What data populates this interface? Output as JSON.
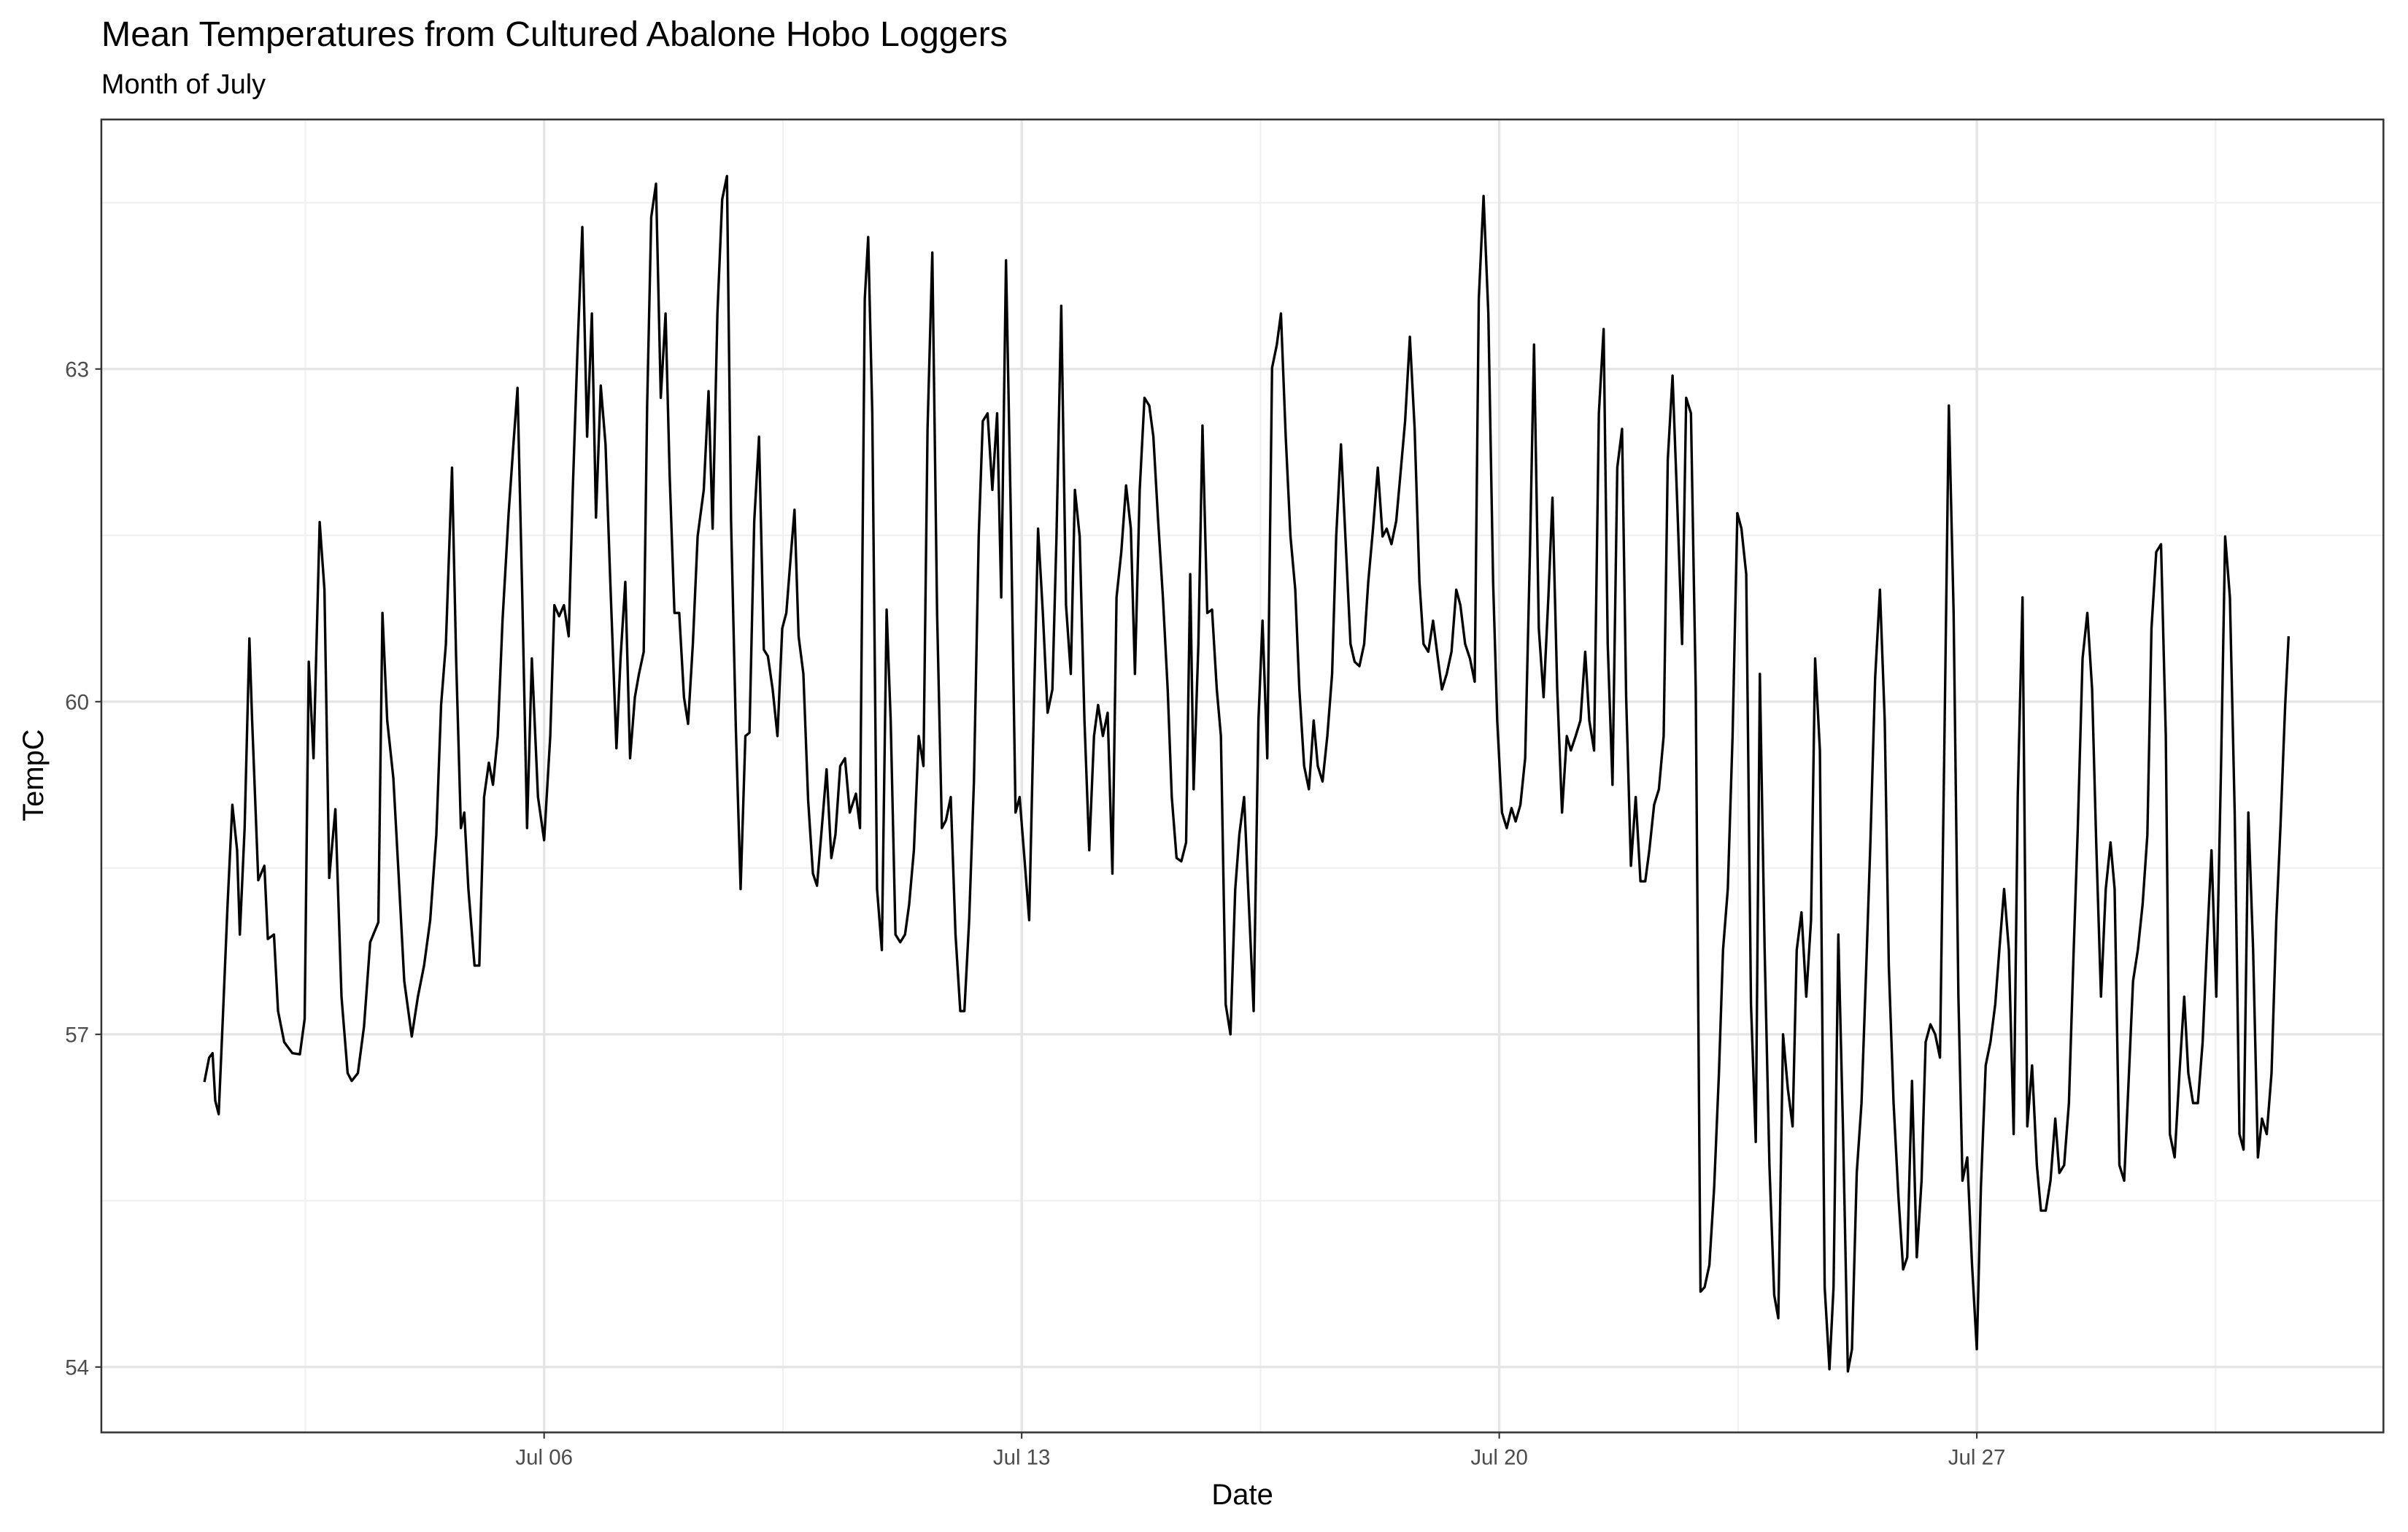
{
  "chart_data": {
    "type": "line",
    "title": "Mean Temperatures from Cultured Abalone Hobo Loggers",
    "subtitle": "Month of July",
    "x_label": "Date",
    "y_label": "TempC",
    "color": "#000000",
    "grid": true,
    "xlim": [
      -0.49,
      32.96
    ],
    "ylim": [
      53.41,
      65.25
    ],
    "xticks": [
      {
        "value": 6,
        "label": "Jul 06"
      },
      {
        "value": 13,
        "label": "Jul 13"
      },
      {
        "value": 20,
        "label": "Jul 20"
      },
      {
        "value": 27,
        "label": "Jul 27"
      }
    ],
    "x_minor_ticks": [
      2.5,
      9.5,
      16.5,
      23.5,
      30.5
    ],
    "yticks": [
      54,
      57,
      60,
      63
    ],
    "y_minor_ticks": [
      55.5,
      58.5,
      61.5,
      64.5
    ],
    "x": [
      1.02,
      1.09,
      1.14,
      1.18,
      1.23,
      1.29,
      1.36,
      1.43,
      1.5,
      1.54,
      1.61,
      1.68,
      1.72,
      1.81,
      1.9,
      1.95,
      2.04,
      2.1,
      2.19,
      2.31,
      2.42,
      2.49,
      2.55,
      2.62,
      2.71,
      2.78,
      2.85,
      2.94,
      3.03,
      3.12,
      3.18,
      3.27,
      3.36,
      3.45,
      3.57,
      3.63,
      3.7,
      3.79,
      3.86,
      3.95,
      4.06,
      4.15,
      4.24,
      4.33,
      4.42,
      4.49,
      4.56,
      4.65,
      4.71,
      4.78,
      4.83,
      4.89,
      4.98,
      5.05,
      5.12,
      5.19,
      5.25,
      5.32,
      5.39,
      5.48,
      5.55,
      5.61,
      5.68,
      5.75,
      5.82,
      5.91,
      6.0,
      6.09,
      6.15,
      6.22,
      6.29,
      6.36,
      6.42,
      6.49,
      6.56,
      6.63,
      6.7,
      6.76,
      6.83,
      6.9,
      6.97,
      7.06,
      7.12,
      7.19,
      7.26,
      7.33,
      7.39,
      7.46,
      7.51,
      7.57,
      7.64,
      7.71,
      7.78,
      7.84,
      7.91,
      7.98,
      8.05,
      8.11,
      8.18,
      8.25,
      8.34,
      8.41,
      8.47,
      8.54,
      8.61,
      8.68,
      8.74,
      8.81,
      8.88,
      8.95,
      9.01,
      9.08,
      9.15,
      9.22,
      9.28,
      9.35,
      9.42,
      9.49,
      9.55,
      9.62,
      9.67,
      9.73,
      9.8,
      9.87,
      9.94,
      10.0,
      10.07,
      10.14,
      10.21,
      10.27,
      10.34,
      10.41,
      10.48,
      10.57,
      10.63,
      10.7,
      10.75,
      10.81,
      10.88,
      10.95,
      11.02,
      11.08,
      11.15,
      11.22,
      11.29,
      11.35,
      11.42,
      11.49,
      11.56,
      11.62,
      11.69,
      11.76,
      11.83,
      11.89,
      11.96,
      12.03,
      12.1,
      12.16,
      12.23,
      12.3,
      12.37,
      12.43,
      12.5,
      12.57,
      12.64,
      12.7,
      12.77,
      12.84,
      12.91,
      12.97,
      13.04,
      13.11,
      13.18,
      13.24,
      13.31,
      13.38,
      13.45,
      13.51,
      13.58,
      13.65,
      13.72,
      13.78,
      13.85,
      13.92,
      13.99,
      14.06,
      14.12,
      14.19,
      14.26,
      14.33,
      14.39,
      14.46,
      14.53,
      14.6,
      14.66,
      14.73,
      14.8,
      14.87,
      14.93,
      15.0,
      15.07,
      15.14,
      15.2,
      15.27,
      15.34,
      15.41,
      15.47,
      15.52,
      15.59,
      15.65,
      15.72,
      15.79,
      15.86,
      15.92,
      15.99,
      16.06,
      16.13,
      16.19,
      16.26,
      16.33,
      16.4,
      16.47,
      16.53,
      16.6,
      16.67,
      16.74,
      16.8,
      16.87,
      16.94,
      17.01,
      17.07,
      17.14,
      17.21,
      17.28,
      17.34,
      17.41,
      17.48,
      17.55,
      17.61,
      17.68,
      17.75,
      17.82,
      17.88,
      17.95,
      18.02,
      18.08,
      18.15,
      18.22,
      18.29,
      18.35,
      18.42,
      18.49,
      18.56,
      18.62,
      18.69,
      18.76,
      18.83,
      18.89,
      18.96,
      19.03,
      19.1,
      19.16,
      19.23,
      19.3,
      19.37,
      19.43,
      19.5,
      19.57,
      19.64,
      19.7,
      19.77,
      19.84,
      19.91,
      19.97,
      20.04,
      20.11,
      20.18,
      20.24,
      20.31,
      20.38,
      20.45,
      20.51,
      20.58,
      20.65,
      20.72,
      20.78,
      20.85,
      20.92,
      20.99,
      21.05,
      21.12,
      21.19,
      21.26,
      21.32,
      21.39,
      21.46,
      21.53,
      21.59,
      21.66,
      21.73,
      21.8,
      21.86,
      21.93,
      22.0,
      22.07,
      22.14,
      22.2,
      22.27,
      22.34,
      22.41,
      22.47,
      22.54,
      22.61,
      22.68,
      22.74,
      22.81,
      22.88,
      22.95,
      23.01,
      23.08,
      23.15,
      23.22,
      23.28,
      23.35,
      23.42,
      23.49,
      23.55,
      23.62,
      23.69,
      23.76,
      23.82,
      23.89,
      23.96,
      24.03,
      24.09,
      24.16,
      24.23,
      24.3,
      24.36,
      24.43,
      24.5,
      24.57,
      24.63,
      24.7,
      24.77,
      24.84,
      24.9,
      24.97,
      25.04,
      25.11,
      25.17,
      25.24,
      25.31,
      25.38,
      25.44,
      25.51,
      25.58,
      25.65,
      25.71,
      25.78,
      25.85,
      25.92,
      25.98,
      26.05,
      26.12,
      26.19,
      26.25,
      26.32,
      26.39,
      26.46,
      26.52,
      26.59,
      26.66,
      26.73,
      26.79,
      26.86,
      26.93,
      27.0,
      27.06,
      27.13,
      27.2,
      27.27,
      27.33,
      27.4,
      27.47,
      27.54,
      27.6,
      27.67,
      27.74,
      27.81,
      27.88,
      27.94,
      28.01,
      28.08,
      28.15,
      28.21,
      28.28,
      28.35,
      28.42,
      28.48,
      28.55,
      28.62,
      28.69,
      28.75,
      28.82,
      28.89,
      28.96,
      29.02,
      29.09,
      29.16,
      29.23,
      29.29,
      29.36,
      29.43,
      29.5,
      29.56,
      29.63,
      29.7,
      29.77,
      29.83,
      29.9,
      29.97,
      30.04,
      30.1,
      30.17,
      30.24,
      30.31,
      30.37,
      30.44,
      30.51,
      30.58,
      30.64,
      30.71,
      30.78,
      30.85,
      30.91,
      30.98,
      31.05,
      31.12,
      31.18,
      31.25,
      31.32,
      31.39,
      31.45,
      31.52,
      31.57
    ],
    "values": [
      56.57,
      56.79,
      56.83,
      56.4,
      56.28,
      57.14,
      58.17,
      59.07,
      58.66,
      57.9,
      58.86,
      60.57,
      59.83,
      58.39,
      58.52,
      57.86,
      57.9,
      57.21,
      56.93,
      56.83,
      56.82,
      57.14,
      60.36,
      59.49,
      61.62,
      61.01,
      58.41,
      59.03,
      57.34,
      56.65,
      56.58,
      56.65,
      57.07,
      57.83,
      58.01,
      60.8,
      59.83,
      59.31,
      58.52,
      57.48,
      56.98,
      57.34,
      57.62,
      58.03,
      58.8,
      59.97,
      60.52,
      62.11,
      60.39,
      58.86,
      59.0,
      58.31,
      57.62,
      57.62,
      59.14,
      59.45,
      59.25,
      59.69,
      60.73,
      61.7,
      62.32,
      62.83,
      60.94,
      58.86,
      60.39,
      59.14,
      58.75,
      59.69,
      60.87,
      60.77,
      60.87,
      60.59,
      61.91,
      63.19,
      64.28,
      62.39,
      63.5,
      61.66,
      62.85,
      62.32,
      61.08,
      59.58,
      60.39,
      61.08,
      59.49,
      60.04,
      60.25,
      60.45,
      62.67,
      64.37,
      64.67,
      62.74,
      63.5,
      62.04,
      60.8,
      60.8,
      60.04,
      59.8,
      60.52,
      61.49,
      61.91,
      62.8,
      61.56,
      63.5,
      64.53,
      64.74,
      61.63,
      59.76,
      58.31,
      59.69,
      59.72,
      61.63,
      62.39,
      60.47,
      60.41,
      60.11,
      59.69,
      60.66,
      60.8,
      61.35,
      61.73,
      60.59,
      60.25,
      59.11,
      58.45,
      58.34,
      58.86,
      59.39,
      58.59,
      58.8,
      59.42,
      59.49,
      59.0,
      59.17,
      58.86,
      63.63,
      64.19,
      62.6,
      58.31,
      57.76,
      60.83,
      59.83,
      57.9,
      57.83,
      57.9,
      58.17,
      58.66,
      59.69,
      59.42,
      62.46,
      64.05,
      60.8,
      58.86,
      58.93,
      59.14,
      57.9,
      57.21,
      57.21,
      58.03,
      59.28,
      61.49,
      62.53,
      62.6,
      61.91,
      62.6,
      60.94,
      63.98,
      61.7,
      59.0,
      59.14,
      58.59,
      58.03,
      59.97,
      61.56,
      60.8,
      59.9,
      60.11,
      61.49,
      63.57,
      60.87,
      60.25,
      61.91,
      61.49,
      59.83,
      58.66,
      59.69,
      59.97,
      59.69,
      59.9,
      58.45,
      60.94,
      61.35,
      61.95,
      61.56,
      60.25,
      61.91,
      62.74,
      62.67,
      62.39,
      61.63,
      60.94,
      60.11,
      59.14,
      58.59,
      58.56,
      58.73,
      61.15,
      59.21,
      60.52,
      62.49,
      60.8,
      60.83,
      60.11,
      59.69,
      57.27,
      57.0,
      58.31,
      58.8,
      59.14,
      58.17,
      57.21,
      59.83,
      60.73,
      59.49,
      63.01,
      63.22,
      63.5,
      62.39,
      61.49,
      61.01,
      60.11,
      59.42,
      59.21,
      59.83,
      59.42,
      59.28,
      59.69,
      60.25,
      61.49,
      62.32,
      61.42,
      60.52,
      60.36,
      60.32,
      60.52,
      61.08,
      61.56,
      62.11,
      61.49,
      61.56,
      61.42,
      61.63,
      62.11,
      62.53,
      63.29,
      62.46,
      61.08,
      60.52,
      60.45,
      60.73,
      60.39,
      60.11,
      60.25,
      60.45,
      61.01,
      60.87,
      60.52,
      60.39,
      60.18,
      63.63,
      64.56,
      63.5,
      61.08,
      59.83,
      59.0,
      58.86,
      59.04,
      58.92,
      59.07,
      59.49,
      61.35,
      63.22,
      60.66,
      60.04,
      60.94,
      61.84,
      60.11,
      59.0,
      59.69,
      59.56,
      59.69,
      59.83,
      60.45,
      59.83,
      59.56,
      62.6,
      63.36,
      60.52,
      59.25,
      62.11,
      62.46,
      60.04,
      58.52,
      59.14,
      58.38,
      58.38,
      58.66,
      59.07,
      59.21,
      59.69,
      62.18,
      62.94,
      61.77,
      60.52,
      62.74,
      62.6,
      60.11,
      54.68,
      54.72,
      54.92,
      55.62,
      56.65,
      57.76,
      58.31,
      59.69,
      61.7,
      61.56,
      61.15,
      57.27,
      56.03,
      60.25,
      57.76,
      55.82,
      54.65,
      54.44,
      57.0,
      56.51,
      56.17,
      57.76,
      58.1,
      57.34,
      58.03,
      60.39,
      59.56,
      54.72,
      53.98,
      54.72,
      57.9,
      56.1,
      53.96,
      54.16,
      55.75,
      56.38,
      57.62,
      58.73,
      60.22,
      61.01,
      59.83,
      57.62,
      56.38,
      55.55,
      54.88,
      54.99,
      56.58,
      54.99,
      55.68,
      56.93,
      57.09,
      57.0,
      56.79,
      59.42,
      62.67,
      60.8,
      57.34,
      55.68,
      55.89,
      54.92,
      54.16,
      55.62,
      56.72,
      56.93,
      57.27,
      57.76,
      58.31,
      57.76,
      56.1,
      59.14,
      60.94,
      56.17,
      56.72,
      55.82,
      55.41,
      55.41,
      55.68,
      56.24,
      55.75,
      55.82,
      56.38,
      57.76,
      58.86,
      60.39,
      60.8,
      60.11,
      58.73,
      57.34,
      58.31,
      58.73,
      58.31,
      55.82,
      55.68,
      56.65,
      57.48,
      57.76,
      58.17,
      58.8,
      60.66,
      61.35,
      61.42,
      59.69,
      56.1,
      55.89,
      56.65,
      57.34,
      56.65,
      56.38,
      56.38,
      56.93,
      57.76,
      58.66,
      57.34,
      59.42,
      61.49,
      60.94,
      59.0,
      56.1,
      55.96,
      59.0,
      57.76,
      55.89,
      56.24,
      56.1,
      56.65,
      58.03,
      58.86,
      59.97,
      60.59
    ]
  }
}
